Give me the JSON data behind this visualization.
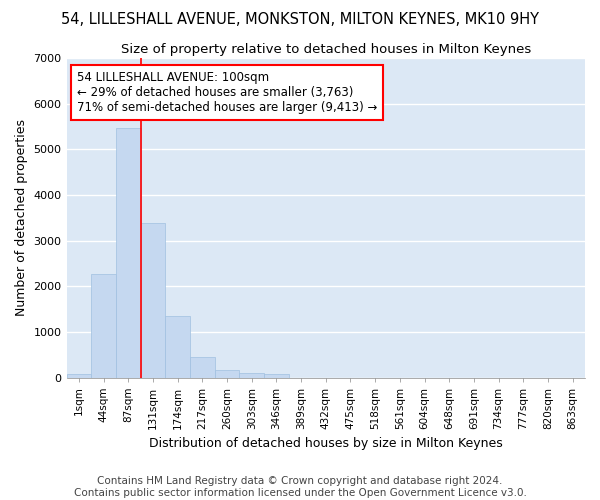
{
  "title": "54, LILLESHALL AVENUE, MONKSTON, MILTON KEYNES, MK10 9HY",
  "subtitle": "Size of property relative to detached houses in Milton Keynes",
  "xlabel": "Distribution of detached houses by size in Milton Keynes",
  "ylabel": "Number of detached properties",
  "footer_line1": "Contains HM Land Registry data © Crown copyright and database right 2024.",
  "footer_line2": "Contains public sector information licensed under the Open Government Licence v3.0.",
  "categories": [
    "1sqm",
    "44sqm",
    "87sqm",
    "131sqm",
    "174sqm",
    "217sqm",
    "260sqm",
    "303sqm",
    "346sqm",
    "389sqm",
    "432sqm",
    "475sqm",
    "518sqm",
    "561sqm",
    "604sqm",
    "648sqm",
    "691sqm",
    "734sqm",
    "777sqm",
    "820sqm",
    "863sqm"
  ],
  "values": [
    75,
    2275,
    5475,
    3375,
    1350,
    450,
    175,
    100,
    75,
    0,
    0,
    0,
    0,
    0,
    0,
    0,
    0,
    0,
    0,
    0,
    0
  ],
  "bar_color": "#c5d8f0",
  "bar_edgecolor": "#a0c0e0",
  "annotation_box_text": "54 LILLESHALL AVENUE: 100sqm\n← 29% of detached houses are smaller (3,763)\n71% of semi-detached houses are larger (9,413) →",
  "redline_bar_index": 2,
  "ylim": [
    0,
    7000
  ],
  "yticks": [
    0,
    1000,
    2000,
    3000,
    4000,
    5000,
    6000,
    7000
  ],
  "fig_bg_color": "#ffffff",
  "plot_bg_color": "#dce8f5",
  "grid_color": "#ffffff",
  "title_fontsize": 10.5,
  "subtitle_fontsize": 9.5,
  "axis_label_fontsize": 9,
  "tick_fontsize": 8,
  "footer_fontsize": 7.5
}
